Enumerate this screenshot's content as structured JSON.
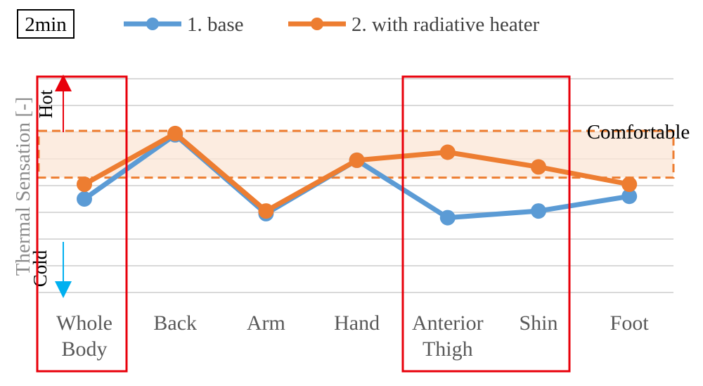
{
  "time_label": "2min",
  "chart_data": {
    "type": "line",
    "ylabel": "Thermal Sensation [-]",
    "y_hot_label": "Hot",
    "y_cold_label": "Cold",
    "comfort_label": "Comfortable",
    "categories": [
      [
        "Whole",
        "Body"
      ],
      [
        "Back"
      ],
      [
        "Arm"
      ],
      [
        "Hand"
      ],
      [
        "Anterior",
        "Thigh"
      ],
      [
        "Shin"
      ],
      [
        "Foot"
      ]
    ],
    "series": [
      {
        "name": "1. base",
        "color": "#5B9BD5",
        "values": [
          -0.5,
          1.9,
          -1.05,
          0.95,
          -1.2,
          -0.95,
          -0.4
        ]
      },
      {
        "name": "2. with radiative heater",
        "color": "#ED7D31",
        "values": [
          0.05,
          1.95,
          -0.95,
          0.95,
          1.25,
          0.7,
          0.05
        ]
      }
    ],
    "comfort_band": [
      0.3,
      2.05
    ],
    "comfort_color": "#ED7D31",
    "highlight_color": "#E8000B",
    "hot_arrow_color": "#E8000B",
    "cold_arrow_color": "#00B0F0",
    "grid": true,
    "legend_position": "top"
  }
}
